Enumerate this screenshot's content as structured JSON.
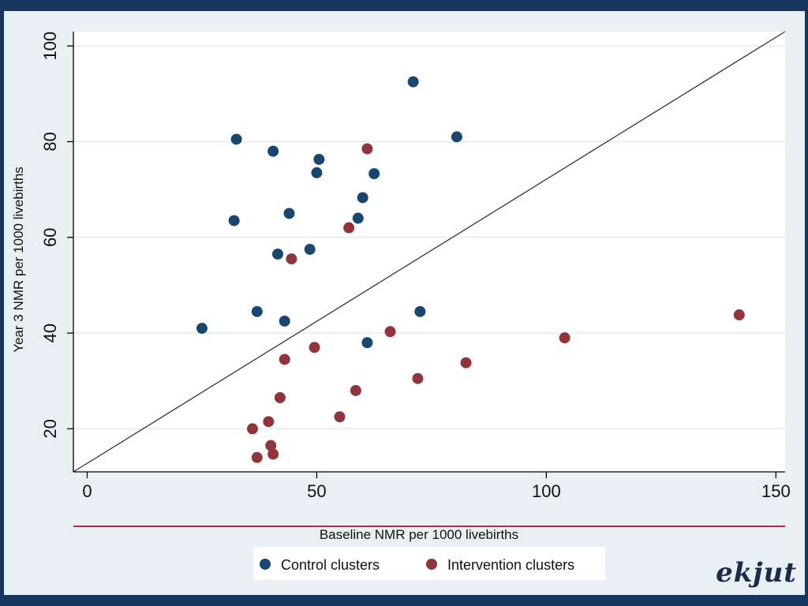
{
  "logo_text": "ekjut",
  "colors": {
    "control": "#1a476f",
    "intervention": "#90353b",
    "reference_line": "#333333",
    "grid": "#eaf2f3",
    "accent_rule": "#c0284a"
  },
  "chart_data": {
    "type": "scatter",
    "title": "",
    "xlabel": "Baseline NMR per 1000 livebirths",
    "ylabel": "Year 3 NMR per 1000 livebirths",
    "xlim": [
      -3,
      152
    ],
    "ylim": [
      11,
      103
    ],
    "xticks": [
      0,
      50,
      100,
      150
    ],
    "yticks": [
      20,
      40,
      60,
      80,
      100
    ],
    "grid": true,
    "legend_position": "bottom",
    "reference_line": {
      "from": [
        -3,
        11
      ],
      "to": [
        152,
        103
      ]
    },
    "series": [
      {
        "name": "Control clusters",
        "color": "#1a476f",
        "points": [
          [
            25,
            41
          ],
          [
            32,
            63.5
          ],
          [
            32.5,
            80.5
          ],
          [
            37,
            44.5
          ],
          [
            40.5,
            78
          ],
          [
            41.5,
            56.5
          ],
          [
            43,
            42.5
          ],
          [
            44,
            65
          ],
          [
            48.5,
            57.5
          ],
          [
            50,
            73.5
          ],
          [
            50.5,
            76.3
          ],
          [
            59,
            64
          ],
          [
            60,
            68.3
          ],
          [
            61,
            38
          ],
          [
            62.5,
            73.3
          ],
          [
            71,
            92.5
          ],
          [
            72.5,
            44.5
          ],
          [
            80.5,
            81
          ]
        ]
      },
      {
        "name": "Intervention clusters",
        "color": "#90353b",
        "points": [
          [
            36,
            20
          ],
          [
            37,
            14
          ],
          [
            39.5,
            21.5
          ],
          [
            40,
            16.5
          ],
          [
            40.5,
            14.7
          ],
          [
            42,
            26.5
          ],
          [
            43,
            34.5
          ],
          [
            44.5,
            55.5
          ],
          [
            49.5,
            37
          ],
          [
            55,
            22.5
          ],
          [
            57,
            62
          ],
          [
            58.5,
            28
          ],
          [
            61,
            78.5
          ],
          [
            66,
            40.3
          ],
          [
            72,
            30.5
          ],
          [
            82.5,
            33.8
          ],
          [
            104,
            39
          ],
          [
            142,
            43.8
          ]
        ]
      }
    ]
  }
}
